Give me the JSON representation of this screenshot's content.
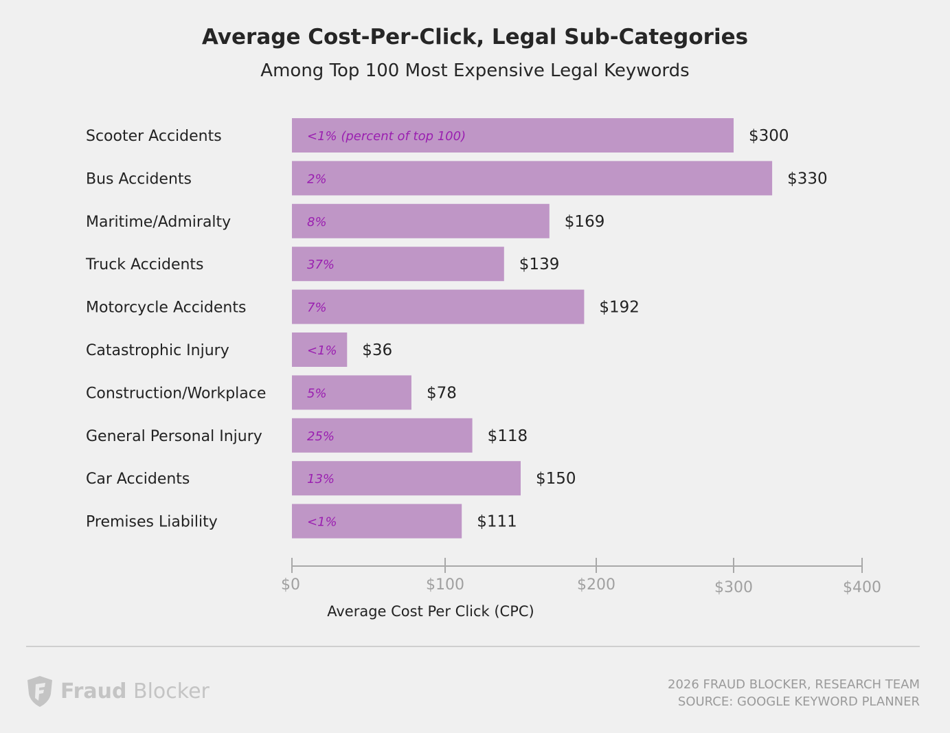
{
  "chart_data": {
    "type": "bar",
    "orientation": "horizontal",
    "title": "Average Cost-Per-Click, Legal Sub-Categories",
    "subtitle": "Among Top 100 Most Expensive Legal Keywords",
    "xlabel": "Average Cost Per Click (CPC)",
    "ylabel": "",
    "xlim": [
      0,
      400
    ],
    "grid": false,
    "bar_color": "#bf96c6",
    "pct_color": "#9a1fb0",
    "x_ticks": [
      0,
      100,
      200,
      300,
      400
    ],
    "x_tick_labels": [
      "$0",
      "$100",
      "$200",
      "$300",
      "$400"
    ],
    "categories": [
      "Scooter Accidents",
      "Bus Accidents",
      "Maritime/Admiralty",
      "Truck Accidents",
      "Motorcycle Accidents",
      "Catastrophic Injury",
      "Construction/Workplace",
      "General Personal Injury",
      "Car Accidents",
      "Premises Liability"
    ],
    "values": [
      300,
      330,
      169,
      139,
      192,
      36,
      78,
      118,
      150,
      111
    ],
    "value_labels": [
      "$300",
      "$330",
      "$169",
      "$139",
      "$192",
      "$36",
      "$78",
      "$118",
      "$150",
      "$111"
    ],
    "percent_labels": [
      "<1% (percent of top 100)",
      "2%",
      "8%",
      "37%",
      "7%",
      "<1%",
      "5%",
      "25%",
      "13%",
      "<1%"
    ]
  },
  "footer": {
    "logo_icon": "shield-f-icon",
    "logo_word_bold": "Fraud",
    "logo_word_light": "Blocker",
    "credit_line1": "2026 FRAUD BLOCKER, RESEARCH TEAM",
    "credit_line2": "SOURCE: GOOGLE KEYWORD PLANNER"
  }
}
